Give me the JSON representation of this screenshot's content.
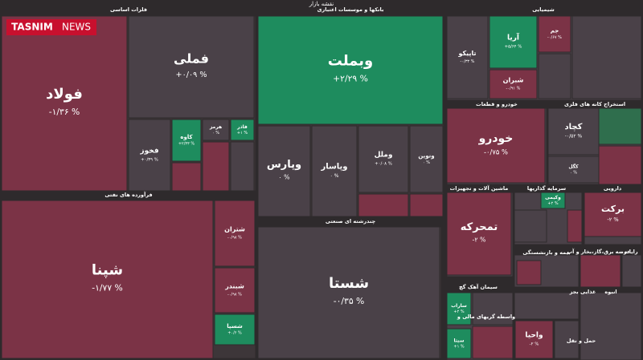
{
  "header": {
    "title": "نقشه بازار",
    "logo": "TASNIM",
    "logo_suffix": "NEWS"
  },
  "sectors": [
    "فلزات اساسی",
    "بانکها و موسسات اعتباری",
    "شیمیایی",
    "فرآورده های نفتی",
    "چندرشته ای صنعتی",
    "خودرو و قطعات",
    "استخراج کانه های فلزی",
    "ماشین آلات و تجهیزات",
    "سرمایه گذاریها",
    "دارویی",
    "بیمه و بازنشستگی",
    "عرضه برق،گاز،بخار و آب",
    "رایانه",
    "سیمان آهک گچ",
    "واسطه گریهای مالی و",
    "غذایی بجز",
    "انبوه",
    "حمل و نقل"
  ],
  "tiles": [
    {
      "label": "فولاد",
      "change": "-۱/۳۶ %",
      "color": "#7b3346"
    },
    {
      "label": "فملی",
      "change": "+۰/۰۹ %",
      "color": "#4a4148"
    },
    {
      "label": "وبملت",
      "change": "+۲/۲۹ %",
      "color": "#1e8c5e"
    },
    {
      "label": "وپارس",
      "change": "۰ %",
      "color": "#4a4148"
    },
    {
      "label": "وپاسار",
      "change": "۰ %",
      "color": "#4a4148"
    },
    {
      "label": "وملل",
      "change": "+۰/۰۸ %",
      "color": "#4a4148"
    },
    {
      "label": "ونوین",
      "change": "۰ %",
      "color": "#4a4148"
    },
    {
      "label": "شپنا",
      "change": "-۱/۷۷ %",
      "color": "#7b3346"
    },
    {
      "label": "شتران",
      "change": "-۰/۹۸ %",
      "color": "#7b3346"
    },
    {
      "label": "شبندر",
      "change": "-۰/۹۸ %",
      "color": "#7b3346"
    },
    {
      "label": "شسپا",
      "change": "+۰/۶ %",
      "color": "#1e8c5e"
    },
    {
      "label": "شستا",
      "change": "-۰/۳۵ %",
      "color": "#4a4148"
    },
    {
      "label": "فخوز",
      "change": "+۰/۳۹ %",
      "color": "#4a4148"
    },
    {
      "label": "کاوه",
      "change": "+۲/۳۳ %",
      "color": "#1e8c5e"
    },
    {
      "label": "هرمز",
      "change": "۰ %",
      "color": "#4a4148"
    },
    {
      "label": "فاذر",
      "change": "+۱ %",
      "color": "#1e8c5e"
    },
    {
      "label": "تاپیکو",
      "change": "-۰/۳۳ %",
      "color": "#4a4148"
    },
    {
      "label": "آریا",
      "change": "+۵/۶۴ %",
      "color": "#1e8c5e"
    },
    {
      "label": "شبران",
      "change": "-۰/۹۱ %",
      "color": "#7b3346"
    },
    {
      "label": "جم",
      "change": "-۰/۶۷ %",
      "color": "#7b3346"
    },
    {
      "label": "خودرو",
      "change": "-۰/۷۵ %",
      "color": "#7b3346"
    },
    {
      "label": "کچاد",
      "change": "-۰/۵۲ %",
      "color": "#4a4148"
    },
    {
      "label": "کگل",
      "change": "۰ %",
      "color": "#4a4148"
    },
    {
      "label": "تمحرکه",
      "change": "-۲ %",
      "color": "#7b3346"
    },
    {
      "label": "برکت",
      "change": "-۲ %",
      "color": "#7b3346"
    },
    {
      "label": "وکیمی",
      "change": "+۲ %",
      "color": "#1e8c5e"
    },
    {
      "label": "واحیا",
      "change": "-۲ %",
      "color": "#7b3346"
    },
    {
      "label": "ساراب",
      "change": "+۲ %",
      "color": "#1e8c5e"
    },
    {
      "label": "سیتا",
      "change": "+۱ %",
      "color": "#1e8c5e"
    }
  ]
}
